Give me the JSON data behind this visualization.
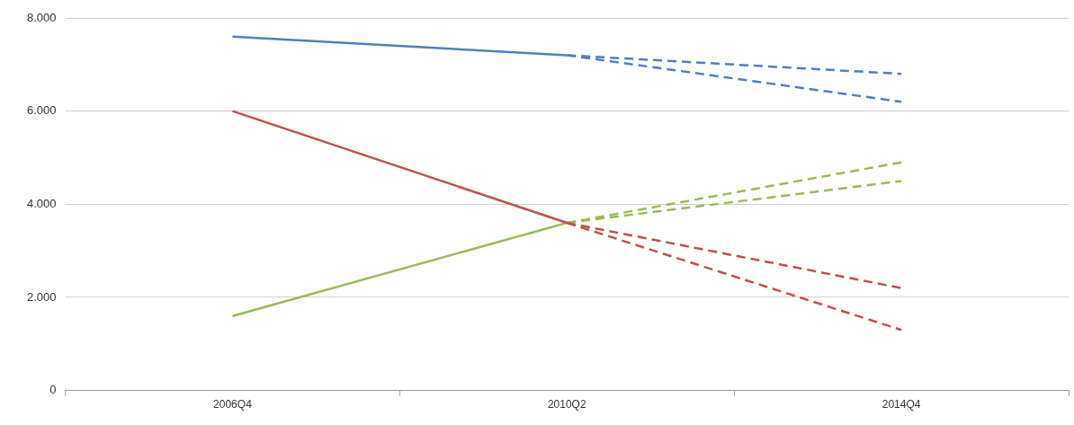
{
  "chart_data": {
    "type": "line",
    "categories": [
      "2006Q4",
      "2010Q2",
      "2014Q4"
    ],
    "series": [
      {
        "color": "#4f81bd",
        "values": [
          7600,
          7200,
          null
        ],
        "line_style": "solid"
      },
      {
        "color": "#4f81bd",
        "values": [
          null,
          7200,
          6800
        ],
        "line_style": "dashed"
      },
      {
        "color": "#4f81bd",
        "values": [
          null,
          7200,
          6200
        ],
        "line_style": "dashed"
      },
      {
        "color": "#c0504d",
        "values": [
          6000,
          3600,
          null
        ],
        "line_style": "solid"
      },
      {
        "color": "#c0504d",
        "values": [
          null,
          3600,
          2200
        ],
        "line_style": "dashed"
      },
      {
        "color": "#c0504d",
        "values": [
          null,
          3600,
          1300
        ],
        "line_style": "dashed"
      },
      {
        "color": "#9bbb59",
        "values": [
          1600,
          3600,
          null
        ],
        "line_style": "solid"
      },
      {
        "color": "#9bbb59",
        "values": [
          null,
          3600,
          4900
        ],
        "line_style": "dashed"
      },
      {
        "color": "#9bbb59",
        "values": [
          null,
          3600,
          4500
        ],
        "line_style": "dashed"
      }
    ],
    "ylim": [
      0,
      8000
    ],
    "yticks": [
      {
        "value": 0,
        "label": "0"
      },
      {
        "value": 2000,
        "label": "2.000"
      },
      {
        "value": 4000,
        "label": "4.000"
      },
      {
        "value": 6000,
        "label": "6.000"
      },
      {
        "value": 8000,
        "label": "8.000"
      }
    ],
    "grid": "y",
    "legend": false,
    "marker": "none"
  }
}
